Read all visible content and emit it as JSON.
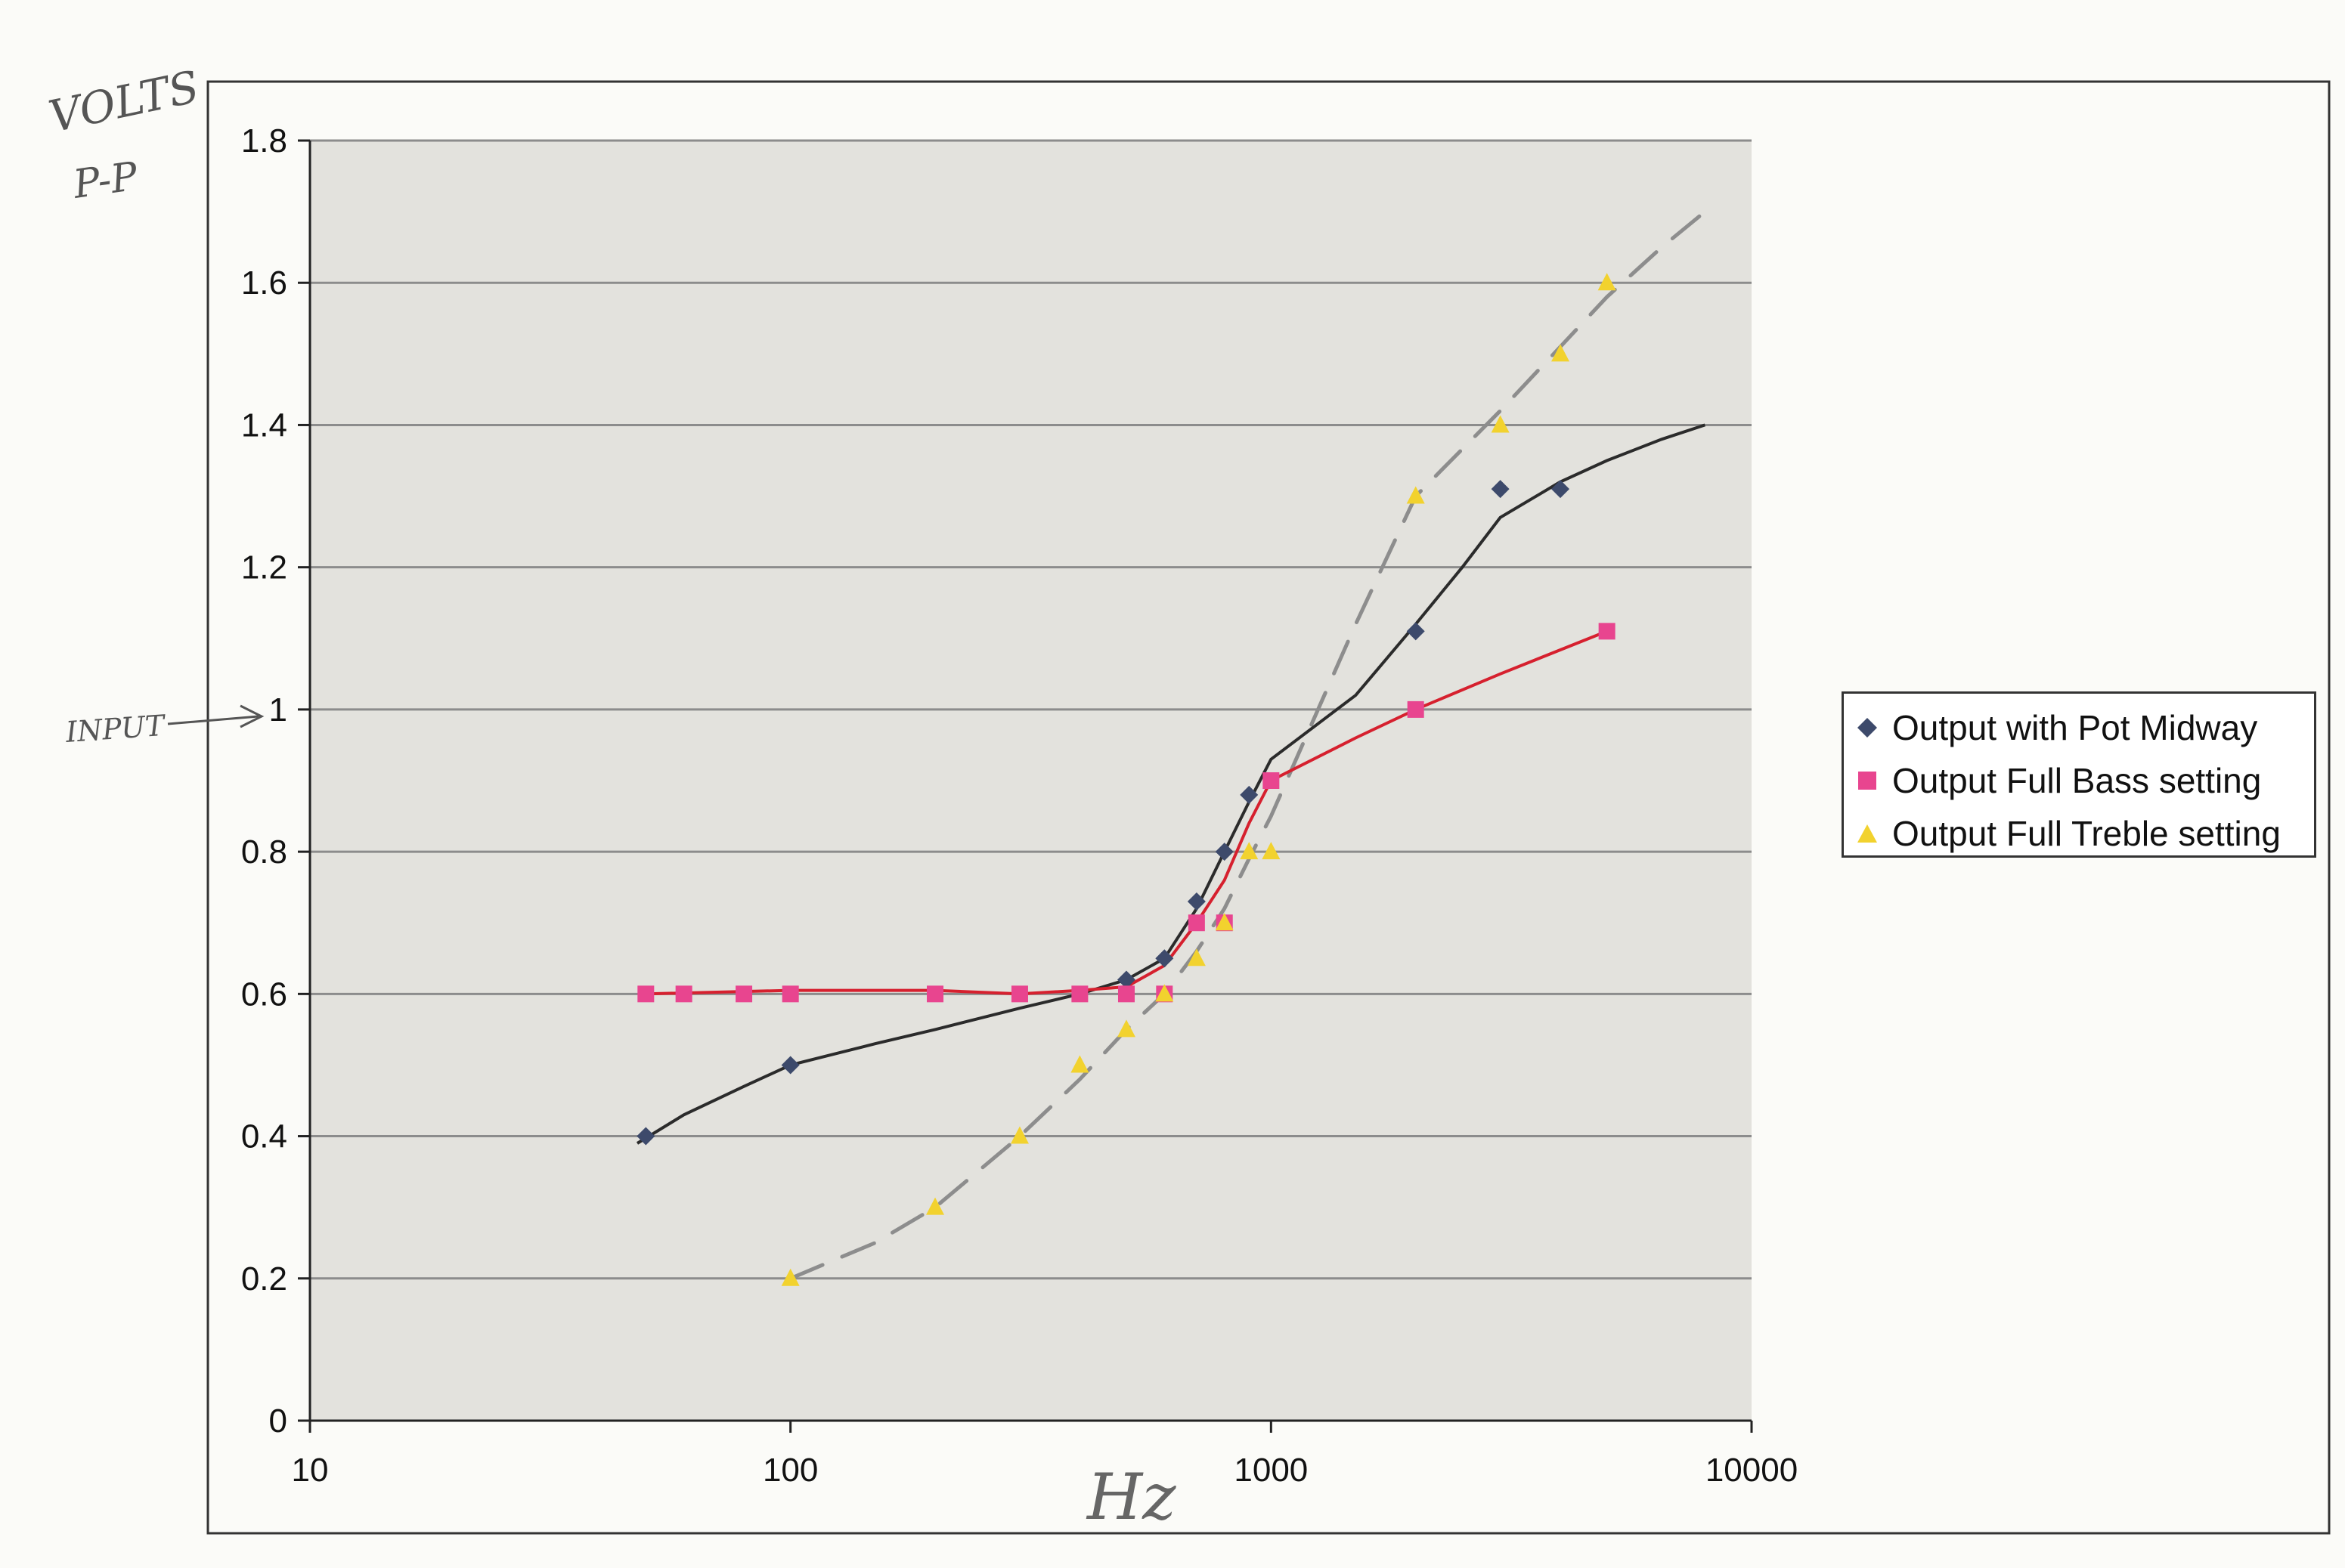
{
  "chart_data": {
    "type": "scatter",
    "x_scale": "log",
    "xlim": [
      10,
      10000
    ],
    "ylim": [
      0,
      1.8
    ],
    "x_ticks": [
      10,
      100,
      1000,
      10000
    ],
    "x_tick_labels": [
      "10",
      "100",
      "1000",
      "10000"
    ],
    "y_ticks": [
      0,
      0.2,
      0.4,
      0.6,
      0.8,
      1.0,
      1.2,
      1.4,
      1.6,
      1.8
    ],
    "y_tick_labels": [
      "0",
      "0.2",
      "0.4",
      "0.6",
      "0.8",
      "1",
      "1.2",
      "1.4",
      "1.6",
      "1.8"
    ],
    "grid": "horizontal",
    "legend_position": "right",
    "colors": {
      "plot_bg": "#e3e2dd",
      "gridline": "#8c8c8c",
      "midway": "#3d4a6b",
      "bass": "#e8458f",
      "treble": "#f2d22e",
      "bass_trend": "#d6202e",
      "midway_trend": "#2b2b2b",
      "treble_trend": "#8d8d8d",
      "handwriting": "#555555"
    },
    "series": [
      {
        "name": "Output with Pot Midway",
        "marker": "diamond",
        "x": [
          50,
          100,
          500,
          600,
          700,
          800,
          900,
          2000,
          3000,
          4000
        ],
        "y": [
          0.4,
          0.5,
          0.62,
          0.65,
          0.73,
          0.8,
          0.88,
          1.11,
          1.31,
          1.31
        ]
      },
      {
        "name": "Output Full Bass setting",
        "marker": "square",
        "x": [
          50,
          60,
          80,
          100,
          200,
          300,
          400,
          500,
          600,
          700,
          800,
          1000,
          2000,
          5000
        ],
        "y": [
          0.6,
          0.6,
          0.6,
          0.6,
          0.6,
          0.6,
          0.6,
          0.6,
          0.6,
          0.7,
          0.7,
          0.9,
          1.0,
          1.11
        ]
      },
      {
        "name": "Output Full Treble setting",
        "marker": "triangle",
        "x": [
          100,
          200,
          300,
          400,
          500,
          600,
          700,
          800,
          900,
          1000,
          2000,
          3000,
          4000,
          5000
        ],
        "y": [
          0.2,
          0.3,
          0.4,
          0.5,
          0.55,
          0.6,
          0.65,
          0.7,
          0.8,
          0.8,
          1.3,
          1.4,
          1.5,
          1.6
        ]
      }
    ],
    "trendlines": {
      "midway": {
        "x": [
          48,
          60,
          80,
          100,
          150,
          200,
          300,
          400,
          500,
          600,
          700,
          800,
          900,
          1000,
          1500,
          2000,
          2500,
          3000,
          4000,
          5000,
          6500,
          8000
        ],
        "y": [
          0.39,
          0.43,
          0.47,
          0.5,
          0.53,
          0.55,
          0.58,
          0.6,
          0.62,
          0.65,
          0.72,
          0.8,
          0.87,
          0.93,
          1.02,
          1.12,
          1.2,
          1.27,
          1.32,
          1.35,
          1.38,
          1.4
        ]
      },
      "bass": {
        "x": [
          50,
          100,
          200,
          300,
          400,
          500,
          600,
          700,
          800,
          900,
          1000,
          1500,
          2000,
          3000,
          5000
        ],
        "y": [
          0.6,
          0.605,
          0.605,
          0.6,
          0.605,
          0.61,
          0.64,
          0.7,
          0.76,
          0.84,
          0.9,
          0.96,
          1.0,
          1.05,
          1.11
        ]
      },
      "treble": {
        "x": [
          100,
          150,
          200,
          300,
          400,
          500,
          600,
          700,
          800,
          900,
          1000,
          1500,
          2000,
          3000,
          4000,
          5000,
          6500,
          8000
        ],
        "y": [
          0.2,
          0.25,
          0.3,
          0.4,
          0.48,
          0.55,
          0.6,
          0.66,
          0.72,
          0.79,
          0.85,
          1.12,
          1.3,
          1.42,
          1.51,
          1.58,
          1.65,
          1.7
        ]
      }
    },
    "annotations": {
      "y_axis_note": "VOLTS P-P",
      "x_axis_note": "Hz",
      "input_note": "INPUT"
    }
  }
}
